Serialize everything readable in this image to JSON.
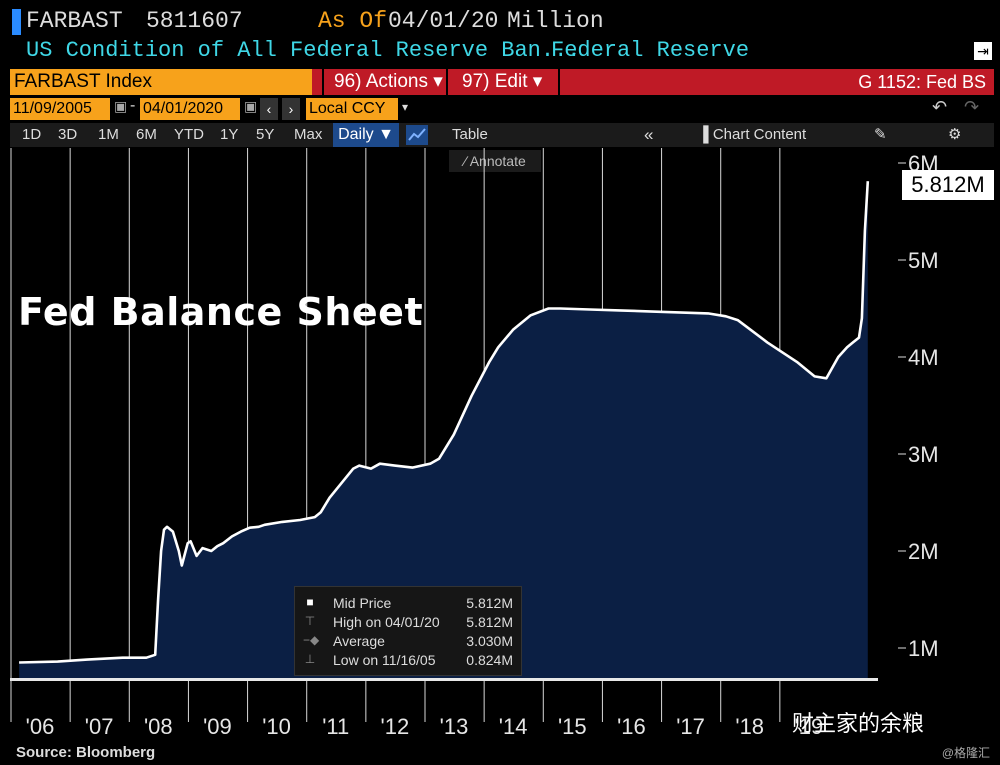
{
  "header": {
    "ticker": "FARBAST",
    "value": "5811607",
    "asof_label": "As Of",
    "asof_date": "04/01/20",
    "unit": "Million",
    "description": "US Condition of All Federal Reserve Ban...",
    "source_name": "Federal Reserve"
  },
  "toolbar": {
    "index_name": "FARBAST Index",
    "actions": "96) Actions ▾",
    "edit": "97) Edit ▾",
    "function": "G 1152: Fed BS",
    "start_date": "11/09/2005",
    "end_date": "04/01/2020",
    "currency": "Local CCY",
    "timeframes": [
      "1D",
      "3D",
      "1M",
      "6M",
      "YTD",
      "1Y",
      "5Y",
      "Max"
    ],
    "frequency": "Daily ▼",
    "table": "Table",
    "chart_content": "Chart Content",
    "annotate": "Annotate"
  },
  "legend": {
    "rows": [
      {
        "label": "Mid Price",
        "value": "5.812M"
      },
      {
        "label": "High on 04/01/20",
        "value": "5.812M"
      },
      {
        "label": "Average",
        "value": "3.030M"
      },
      {
        "label": "Low on 11/16/05",
        "value": "0.824M"
      }
    ]
  },
  "last_value_label": "5.812M",
  "overlay_title": "Fed Balance Sheet",
  "source": "Source: Bloomberg",
  "watermark": "财主家的余粮",
  "watermark2": "@格隆汇",
  "colors": {
    "area": "#0b1f44",
    "line": "#ffffff",
    "accent": "#f7a21b",
    "header_red": "#bf1a26"
  },
  "chart_data": {
    "type": "area",
    "title": "Fed Balance Sheet",
    "xlabel": "",
    "ylabel": "",
    "y_unit": "Million",
    "ylim": [
      0.7,
      6.1
    ],
    "xlim": [
      2005.85,
      2020.25
    ],
    "y_ticks": [
      1,
      2,
      3,
      4,
      5,
      6
    ],
    "y_tick_labels": [
      "1M",
      "2M",
      "3M",
      "4M",
      "5M",
      "6M"
    ],
    "x_ticks": [
      2006,
      2007,
      2008,
      2009,
      2010,
      2011,
      2012,
      2013,
      2014,
      2015,
      2016,
      2017,
      2018,
      2019
    ],
    "x_tick_labels": [
      "'06",
      "'07",
      "'08",
      "'09",
      "'10",
      "'11",
      "'12",
      "'13",
      "'14",
      "'15",
      "'16",
      "'17",
      "'18",
      "'19"
    ],
    "grid": true,
    "series": [
      {
        "x": [
          2005.85,
          2006.5,
          2007.0,
          2007.6,
          2008.0,
          2008.15,
          2008.2,
          2008.25,
          2008.3,
          2008.35,
          2008.45,
          2008.55,
          2008.6,
          2008.7,
          2008.75,
          2008.85,
          2008.95,
          2009.1,
          2009.2,
          2009.3,
          2009.45,
          2009.6,
          2009.75,
          2009.9,
          2010.0,
          2010.3,
          2010.6,
          2010.85,
          2010.95,
          2011.1,
          2011.3,
          2011.5,
          2011.6,
          2011.8,
          2011.95,
          2012.2,
          2012.5,
          2012.8,
          2012.95,
          2013.2,
          2013.5,
          2013.8,
          2013.95,
          2014.2,
          2014.5,
          2014.8,
          2015.0,
          2015.5,
          2016.0,
          2016.5,
          2017.0,
          2017.5,
          2017.8,
          2018.0,
          2018.5,
          2019.0,
          2019.3,
          2019.5,
          2019.7,
          2019.85,
          2019.95,
          2020.05,
          2020.1,
          2020.15,
          2020.2
        ],
        "values": [
          0.85,
          0.86,
          0.88,
          0.9,
          0.9,
          0.93,
          1.5,
          2.0,
          2.22,
          2.25,
          2.2,
          2.0,
          1.85,
          2.08,
          2.1,
          1.95,
          2.03,
          2.0,
          2.05,
          2.08,
          2.15,
          2.2,
          2.24,
          2.25,
          2.27,
          2.3,
          2.32,
          2.35,
          2.4,
          2.55,
          2.7,
          2.85,
          2.88,
          2.85,
          2.9,
          2.88,
          2.86,
          2.9,
          2.95,
          3.2,
          3.6,
          3.95,
          4.1,
          4.28,
          4.43,
          4.5,
          4.5,
          4.49,
          4.48,
          4.47,
          4.46,
          4.45,
          4.42,
          4.38,
          4.15,
          3.95,
          3.8,
          3.78,
          4.0,
          4.1,
          4.15,
          4.2,
          4.4,
          5.3,
          5.812
        ]
      }
    ]
  }
}
